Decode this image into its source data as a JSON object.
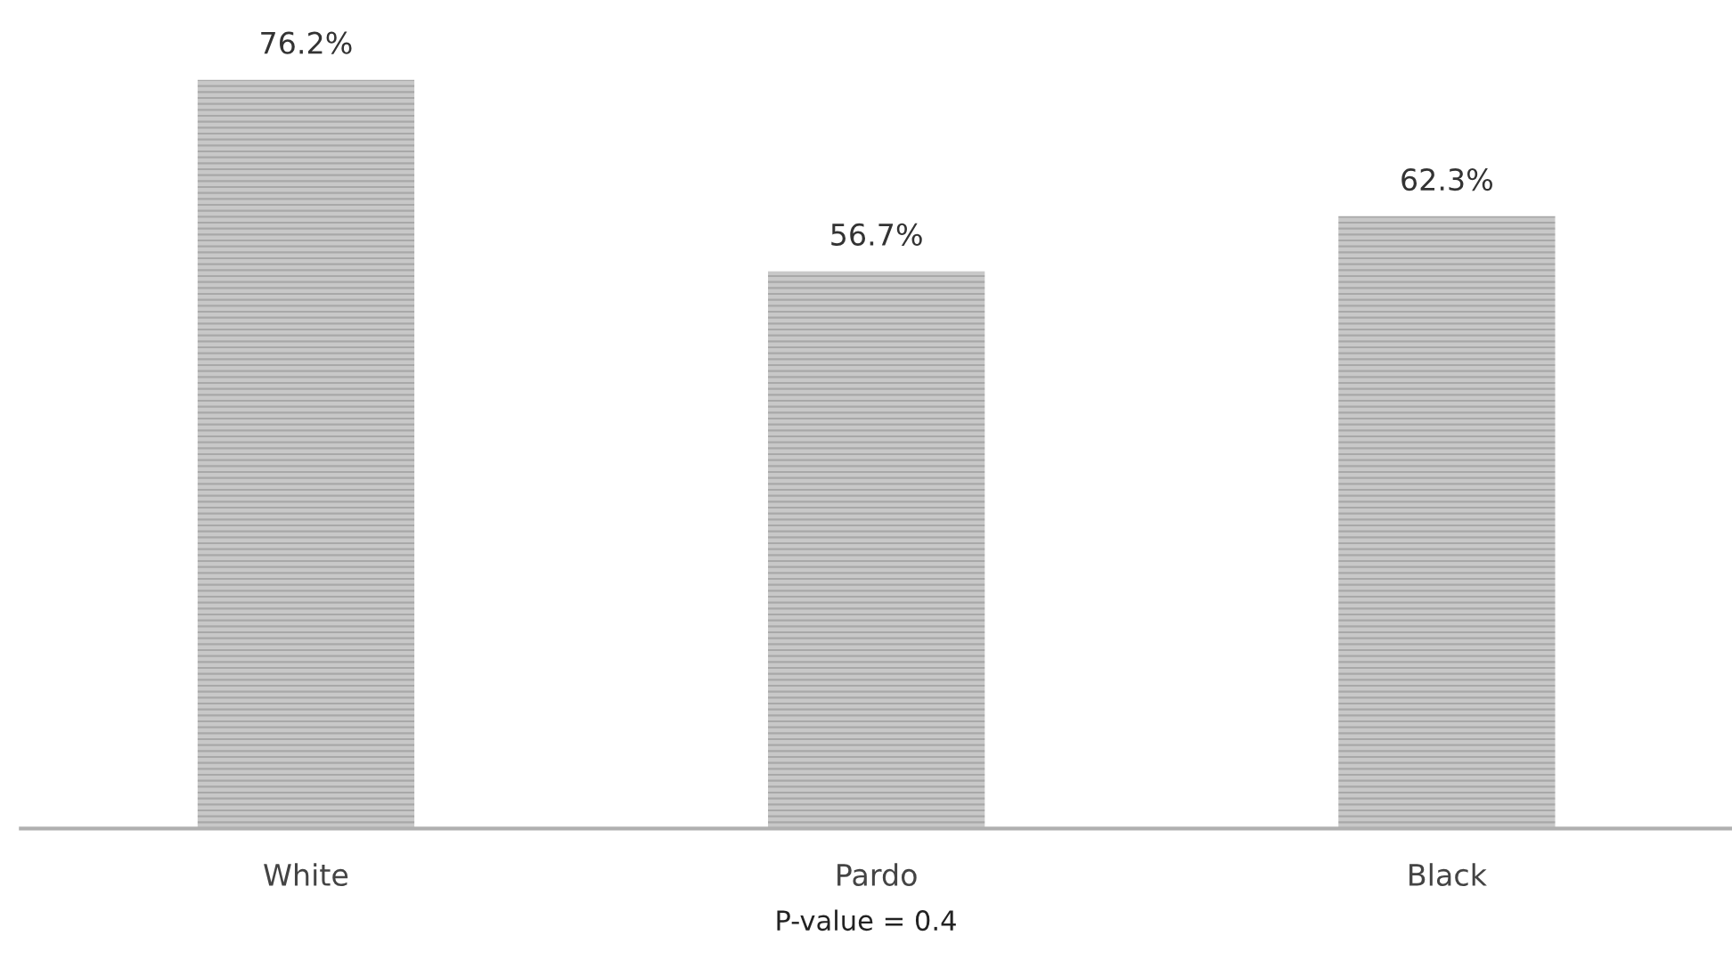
{
  "chart_data": {
    "type": "bar",
    "categories": [
      "White",
      "Pardo",
      "Black"
    ],
    "values": [
      76.2,
      56.7,
      62.3
    ],
    "value_labels": [
      "76.2%",
      "56.7%",
      "62.3%"
    ],
    "color": "#c8c8c8",
    "annotations": [
      "P-value = 0.4"
    ],
    "grid": false
  }
}
